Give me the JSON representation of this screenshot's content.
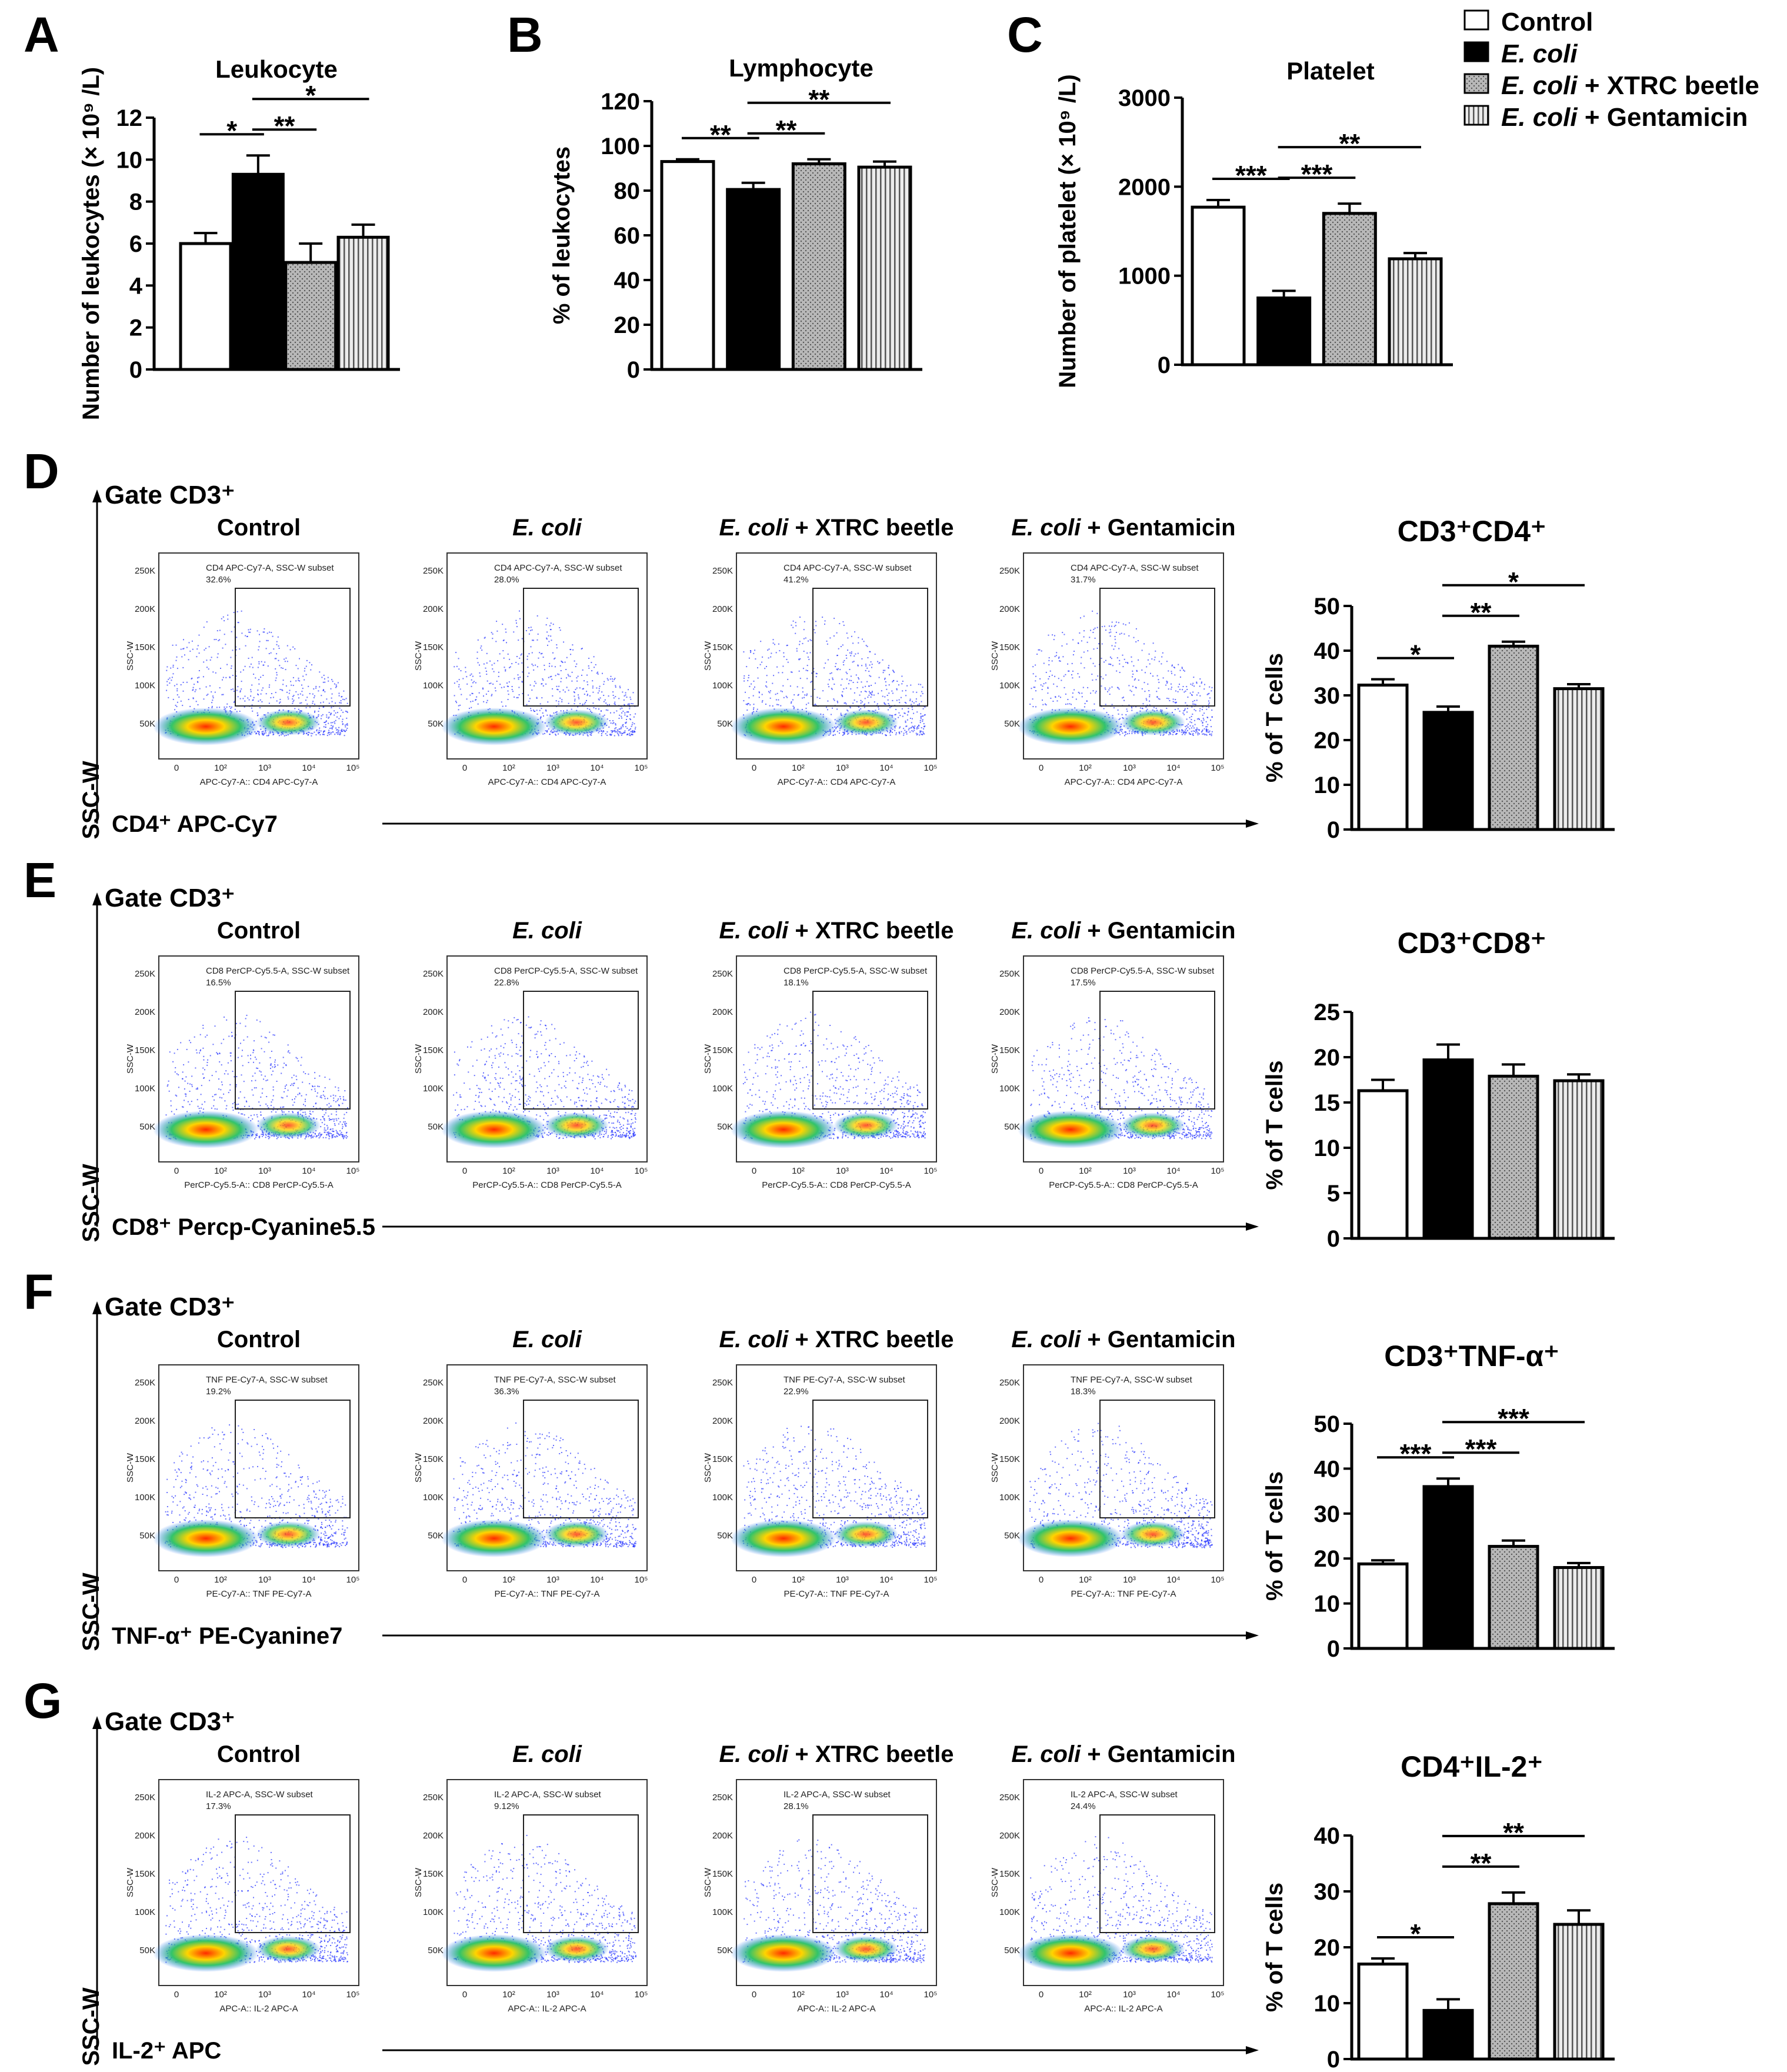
{
  "panel_letters": [
    "A",
    "B",
    "C",
    "D",
    "E",
    "F",
    "G"
  ],
  "legend": {
    "entries": [
      "Control",
      "E. coli",
      "E. coli + XTRC beetle",
      "E. coli + Gentamicin"
    ]
  },
  "colors": {
    "control": "#ffffff",
    "ecoli": "#000000",
    "xtrc": "#b5b5b5",
    "gentamicin": "#d7d7d7"
  },
  "chart_data": [
    {
      "type": "bar",
      "id": "A",
      "title": "Leukocyte",
      "ylabel": "Number of leukocytes (× 10⁹ /L)",
      "ylim": [
        0,
        12
      ],
      "yticks": [
        "0",
        "2",
        "4",
        "6",
        "8",
        "10",
        "12"
      ],
      "series": [
        {
          "values": [
            6.0,
            9.3,
            5.1,
            6.3
          ],
          "errors": [
            0.5,
            0.9,
            0.9,
            0.6
          ]
        }
      ],
      "significance": [
        {
          "from": 0,
          "to": 1,
          "label": "*"
        },
        {
          "from": 1,
          "to": 2,
          "label": "**"
        },
        {
          "from": 1,
          "to": 3,
          "label": "*"
        }
      ]
    },
    {
      "type": "bar",
      "id": "B",
      "title": "Lymphocyte",
      "ylabel": "% of leukocytes",
      "ylim": [
        0,
        120
      ],
      "yticks": [
        "0",
        "20",
        "40",
        "60",
        "80",
        "100",
        "120"
      ],
      "series": [
        {
          "values": [
            93,
            80.5,
            92,
            90.5
          ],
          "errors": [
            1.0,
            3.0,
            2.0,
            2.5
          ]
        }
      ],
      "significance": [
        {
          "from": 0,
          "to": 1,
          "label": "**"
        },
        {
          "from": 1,
          "to": 2,
          "label": "**"
        },
        {
          "from": 1,
          "to": 3,
          "label": "**"
        }
      ]
    },
    {
      "type": "bar",
      "id": "C",
      "title": "Platelet",
      "ylabel": "Number of platelet (× 10⁹ /L)",
      "ylim": [
        0,
        3000
      ],
      "yticks": [
        "0",
        "1000",
        "2000",
        "3000"
      ],
      "series": [
        {
          "values": [
            1770,
            750,
            1700,
            1190
          ],
          "errors": [
            80,
            80,
            110,
            65
          ]
        }
      ],
      "significance": [
        {
          "from": 0,
          "to": 1,
          "label": "***"
        },
        {
          "from": 1,
          "to": 2,
          "label": "***"
        },
        {
          "from": 1,
          "to": 3,
          "label": "**"
        }
      ]
    },
    {
      "type": "bar",
      "id": "D",
      "title": "CD3⁺CD4⁺",
      "ylabel": "% of T cells",
      "ylim": [
        0,
        50
      ],
      "yticks": [
        "0",
        "10",
        "20",
        "30",
        "40",
        "50"
      ],
      "series": [
        {
          "values": [
            32.3,
            26.2,
            41,
            31.5
          ],
          "errors": [
            1.3,
            1.3,
            1.0,
            1.0
          ]
        }
      ],
      "significance": [
        {
          "from": 0,
          "to": 1,
          "label": "*"
        },
        {
          "from": 1,
          "to": 2,
          "label": "**"
        },
        {
          "from": 1,
          "to": 3,
          "label": "*"
        }
      ]
    },
    {
      "type": "bar",
      "id": "E",
      "title": "CD3⁺CD8⁺",
      "ylabel": "% of T cells",
      "ylim": [
        0,
        25
      ],
      "yticks": [
        "0",
        "5",
        "10",
        "15",
        "20",
        "25"
      ],
      "series": [
        {
          "values": [
            16.3,
            19.7,
            17.9,
            17.4
          ],
          "errors": [
            1.2,
            1.7,
            1.3,
            0.7
          ]
        }
      ],
      "significance": []
    },
    {
      "type": "bar",
      "id": "F",
      "title": "CD3⁺TNF-α⁺",
      "ylabel": "% of T cells",
      "ylim": [
        0,
        50
      ],
      "yticks": [
        "0",
        "10",
        "20",
        "30",
        "40",
        "50"
      ],
      "series": [
        {
          "values": [
            18.8,
            36,
            22.7,
            18
          ],
          "errors": [
            0.8,
            1.8,
            1.3,
            1.0
          ]
        }
      ],
      "significance": [
        {
          "from": 0,
          "to": 1,
          "label": "***"
        },
        {
          "from": 1,
          "to": 2,
          "label": "***"
        },
        {
          "from": 1,
          "to": 3,
          "label": "***"
        }
      ]
    },
    {
      "type": "bar",
      "id": "G",
      "title": "CD4⁺IL-2⁺",
      "ylabel": "% of T cells",
      "ylim": [
        0,
        40
      ],
      "yticks": [
        "0",
        "10",
        "20",
        "30",
        "40"
      ],
      "series": [
        {
          "values": [
            17,
            8.7,
            27.8,
            24.1
          ],
          "errors": [
            1.0,
            2.0,
            2.0,
            2.5
          ]
        }
      ],
      "significance": [
        {
          "from": 0,
          "to": 1,
          "label": "*"
        },
        {
          "from": 1,
          "to": 2,
          "label": "**"
        },
        {
          "from": 1,
          "to": 3,
          "label": "**"
        }
      ]
    }
  ],
  "flow_rows": [
    {
      "id": "D",
      "gate": "Gate CD3⁺",
      "ylabel": "SSC-W",
      "marker": "CD4⁺ APC-Cy7",
      "xaxis": "APC-Cy7-A:: CD4 APC-Cy7-A",
      "subset": "CD4 APC-Cy7-A, SSC-W subset",
      "percents": [
        "32.6%",
        "28.0%",
        "41.2%",
        "31.7%"
      ]
    },
    {
      "id": "E",
      "gate": "Gate CD3⁺",
      "ylabel": "SSC-W",
      "marker": "CD8⁺ Percp-Cyanine5.5",
      "xaxis": "PerCP-Cy5.5-A:: CD8 PerCP-Cy5.5-A",
      "subset": "CD8 PerCP-Cy5.5-A, SSC-W subset",
      "percents": [
        "16.5%",
        "22.8%",
        "18.1%",
        "17.5%"
      ]
    },
    {
      "id": "F",
      "gate": "Gate CD3⁺",
      "ylabel": "SSC-W",
      "marker": "TNF-α⁺ PE-Cyanine7",
      "xaxis": "PE-Cy7-A:: TNF PE-Cy7-A",
      "subset": "TNF PE-Cy7-A, SSC-W subset",
      "percents": [
        "19.2%",
        "36.3%",
        "22.9%",
        "18.3%"
      ]
    },
    {
      "id": "G",
      "gate": "Gate CD3⁺",
      "ylabel": "SSC-W",
      "marker": "IL-2⁺ APC",
      "xaxis": "APC-A:: IL-2 APC-A",
      "subset": "IL-2 APC-A, SSC-W subset",
      "percents": [
        "17.3%",
        "9.12%",
        "28.1%",
        "24.4%"
      ]
    }
  ],
  "flow_conditions": [
    "Control",
    "E. coli",
    "E. coli + XTRC beetle",
    "E. coli + Gentamicin"
  ],
  "flow_axis": {
    "yticks": [
      "50K",
      "100K",
      "150K",
      "200K",
      "250K"
    ],
    "xticks": [
      "0",
      "10²",
      "10³",
      "10⁴",
      "10⁵"
    ],
    "ylabel": "SSC-W"
  }
}
